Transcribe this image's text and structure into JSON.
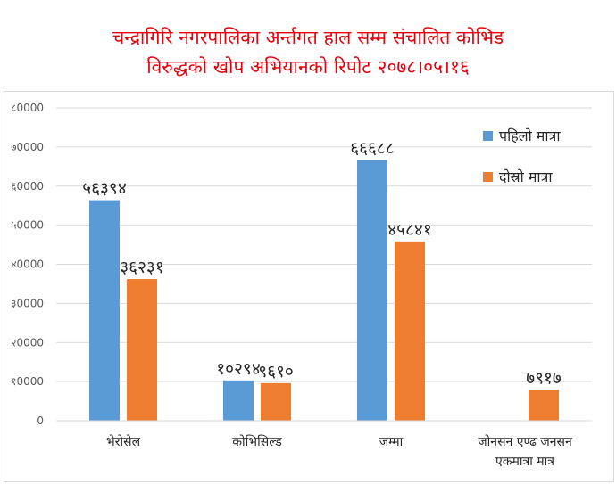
{
  "title": {
    "line1": "चन्द्रागिरि नगरपालिका अर्न्तगत हाल सम्म संचालित कोभिड",
    "line2": "विरुद्धको खोप अभियानको रिपोट   २०७८।०५।१६"
  },
  "colors": {
    "title": "#e8000b",
    "series1": "#5b9bd5",
    "series2": "#ed7d31",
    "grid": "#d9d9d9",
    "text": "#595959"
  },
  "chart_data": {
    "type": "bar",
    "categories": [
      "भेरोसेल",
      "कोभिसिल्ड",
      "जम्मा",
      "जोनसन एण्ढ जनसन एकमात्रा मात्र"
    ],
    "category_lines": [
      [
        "भेरोसेल"
      ],
      [
        "कोभिसिल्ड"
      ],
      [
        "जम्मा"
      ],
      [
        "जोनसन एण्ढ जनसन",
        "एकमात्रा मात्र"
      ]
    ],
    "series": [
      {
        "name": "पहिलो मात्रा",
        "values": [
          56394,
          10294,
          66688,
          null
        ],
        "labels": [
          "५६३९४",
          "१०२९४",
          "६६६८८",
          ""
        ]
      },
      {
        "name": "दोस्रो मात्रा",
        "values": [
          36231,
          9610,
          45841,
          7917
        ],
        "labels": [
          "३६२३१",
          "९६१०",
          "४५८४१",
          "७९१७"
        ]
      }
    ],
    "y_ticks": [
      {
        "value": 0,
        "label": "0"
      },
      {
        "value": 10000,
        "label": "१0000"
      },
      {
        "value": 20000,
        "label": "२0000"
      },
      {
        "value": 30000,
        "label": "३0000"
      },
      {
        "value": 40000,
        "label": "४0000"
      },
      {
        "value": 50000,
        "label": "५0000"
      },
      {
        "value": 60000,
        "label": "६0000"
      },
      {
        "value": 70000,
        "label": "७0000"
      },
      {
        "value": 80000,
        "label": "८0000"
      }
    ],
    "ylim": [
      0,
      80000
    ],
    "grid": true,
    "legend_position": "top-right"
  }
}
